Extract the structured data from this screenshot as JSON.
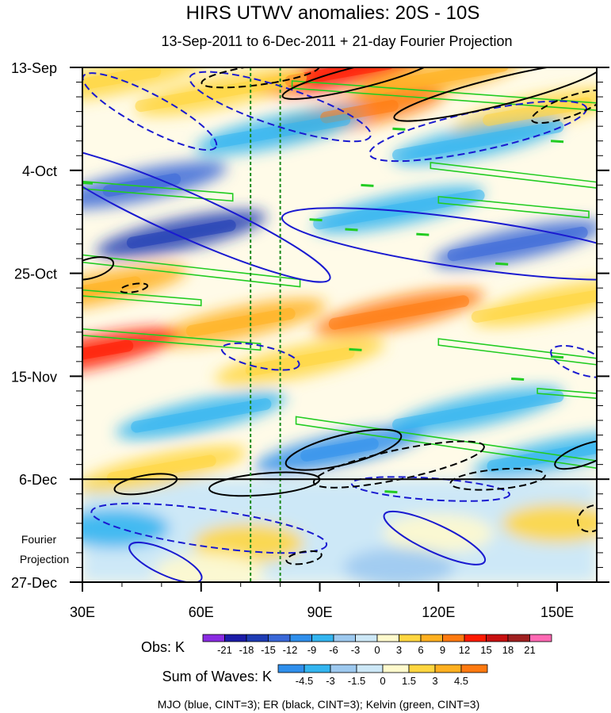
{
  "chart_data": {
    "type": "heatmap",
    "title": "HIRS UTWV anomalies: 20S - 10S",
    "subtitle": "13-Sep-2011 to 6-Dec-2011 + 21-day Fourier Projection",
    "xlim": [
      30,
      160
    ],
    "ylim_dates": [
      "13-Sep",
      "27-Dec"
    ],
    "y_ticks": [
      {
        "label": "13-Sep",
        "day": 0
      },
      {
        "label": "4-Oct",
        "day": 21
      },
      {
        "label": "25-Oct",
        "day": 42
      },
      {
        "label": "15-Nov",
        "day": 63
      },
      {
        "label": "6-Dec",
        "day": 84
      },
      {
        "label": "27-Dec",
        "day": 105
      }
    ],
    "x_ticks": [
      {
        "label": "30E",
        "lon": 30
      },
      {
        "label": "60E",
        "lon": 60
      },
      {
        "label": "90E",
        "lon": 90
      },
      {
        "label": "120E",
        "lon": 120
      },
      {
        "label": "150E",
        "lon": 150
      }
    ],
    "projection_start_day": 84,
    "projection_label": [
      "Fourier",
      "Projection"
    ],
    "reference_lines_lon": [
      72.5,
      80
    ],
    "obs_colorbar": {
      "label": "Obs: K",
      "ticks": [
        "-21",
        "-18",
        "-15",
        "-12",
        "-9",
        "-6",
        "-3",
        "0",
        "3",
        "6",
        "9",
        "12",
        "15",
        "18",
        "21"
      ],
      "colors": [
        "#8a2be2",
        "#1c1ca8",
        "#1e3cb4",
        "#3a68d8",
        "#2f8fec",
        "#33b5f0",
        "#9dc9ef",
        "#cde8f7",
        "#fffacd",
        "#ffd640",
        "#ffb020",
        "#ff7a10",
        "#ff1a00",
        "#c81010",
        "#a02020",
        "#ff69b4"
      ]
    },
    "waves_colorbar": {
      "label": "Sum of Waves: K",
      "ticks": [
        "-4.5",
        "-3",
        "-1.5",
        "0",
        "1.5",
        "3",
        "4.5"
      ],
      "colors": [
        "#2f8fec",
        "#33b5f0",
        "#9dc9ef",
        "#cde8f7",
        "#fffacd",
        "#ffd640",
        "#ffb020",
        "#ff7a10"
      ]
    },
    "footnote": "MJO (blue, CINT=3); ER (black, CINT=3); Kelvin (green, CINT=3)",
    "wave_colors": {
      "mjo": "#1a1ad0",
      "er": "#000000",
      "kelvin": "#22cc22"
    },
    "obs_field": [
      {
        "lon": 40,
        "day": 2,
        "value": 6
      },
      {
        "lon": 95,
        "day": 1,
        "value": 15
      },
      {
        "lon": 120,
        "day": 2,
        "value": 9
      },
      {
        "lon": 65,
        "day": 5,
        "value": 6
      },
      {
        "lon": 100,
        "day": 9,
        "value": 12
      },
      {
        "lon": 145,
        "day": 9,
        "value": 6
      },
      {
        "lon": 80,
        "day": 13,
        "value": -6
      },
      {
        "lon": 130,
        "day": 15,
        "value": -6
      },
      {
        "lon": 45,
        "day": 24,
        "value": -12
      },
      {
        "lon": 55,
        "day": 34,
        "value": -15
      },
      {
        "lon": 140,
        "day": 36,
        "value": -12
      },
      {
        "lon": 110,
        "day": 29,
        "value": -6
      },
      {
        "lon": 35,
        "day": 45,
        "value": 9
      },
      {
        "lon": 70,
        "day": 52,
        "value": 9
      },
      {
        "lon": 110,
        "day": 50,
        "value": 12
      },
      {
        "lon": 150,
        "day": 48,
        "value": 6
      },
      {
        "lon": 33,
        "day": 58,
        "value": 15
      },
      {
        "lon": 85,
        "day": 60,
        "value": 6
      },
      {
        "lon": 60,
        "day": 71,
        "value": -6
      },
      {
        "lon": 130,
        "day": 70,
        "value": -6
      },
      {
        "lon": 95,
        "day": 78,
        "value": -9
      },
      {
        "lon": 50,
        "day": 82,
        "value": 6
      },
      {
        "lon": 150,
        "day": 79,
        "value": -6
      }
    ],
    "wave_field": [
      {
        "lon": 38,
        "day": 94,
        "value": -3
      },
      {
        "lon": 72,
        "day": 97,
        "value": 3
      },
      {
        "lon": 62,
        "day": 103,
        "value": 1.5
      },
      {
        "lon": 120,
        "day": 95,
        "value": 1.5
      },
      {
        "lon": 150,
        "day": 93,
        "value": 3
      },
      {
        "lon": 110,
        "day": 102,
        "value": -1.5
      }
    ],
    "mjo_contours": [
      {
        "lon": 47,
        "day": 9,
        "rx": 19,
        "ry": 3.5,
        "angle": 28,
        "dashed": true
      },
      {
        "lon": 80,
        "day": 8,
        "rx": 24,
        "ry": 4,
        "angle": 18,
        "dashed": true
      },
      {
        "lon": 130,
        "day": 13,
        "rx": 28,
        "ry": 4,
        "angle": -12,
        "dashed": true
      },
      {
        "lon": 56,
        "day": 30,
        "rx": 40,
        "ry": 4.5,
        "angle": 24,
        "dashed": false
      },
      {
        "lon": 128,
        "day": 36,
        "rx": 48,
        "ry": 5,
        "angle": 8,
        "dashed": false
      },
      {
        "lon": 75,
        "day": 59,
        "rx": 10,
        "ry": 2.2,
        "angle": 12,
        "dashed": true
      },
      {
        "lon": 156,
        "day": 60,
        "rx": 8,
        "ry": 2.5,
        "angle": 20,
        "dashed": true
      },
      {
        "lon": 62,
        "day": 94,
        "rx": 30,
        "ry": 3.8,
        "angle": 8,
        "dashed": true
      },
      {
        "lon": 118,
        "day": 86,
        "rx": 20,
        "ry": 2.2,
        "angle": 4,
        "dashed": true
      },
      {
        "lon": 51,
        "day": 101,
        "rx": 10,
        "ry": 2.5,
        "angle": 25,
        "dashed": false
      },
      {
        "lon": 119,
        "day": 96,
        "rx": 14,
        "ry": 2.8,
        "angle": 25,
        "dashed": false
      }
    ],
    "er_contours": [
      {
        "lon": 75,
        "day": 1.5,
        "rx": 15,
        "ry": 2,
        "angle": -8,
        "dashed": true
      },
      {
        "lon": 100,
        "day": 2,
        "rx": 20,
        "ry": 2.2,
        "angle": -14,
        "dashed": false
      },
      {
        "lon": 135,
        "day": 5,
        "rx": 27,
        "ry": 2.8,
        "angle": -14,
        "dashed": false
      },
      {
        "lon": 153,
        "day": 8,
        "rx": 10,
        "ry": 2,
        "angle": -20,
        "dashed": true
      },
      {
        "lon": 32,
        "day": 41,
        "rx": 6,
        "ry": 2,
        "angle": -15,
        "dashed": false
      },
      {
        "lon": 43,
        "day": 45,
        "rx": 3.5,
        "ry": 0.8,
        "angle": -10,
        "dashed": true
      },
      {
        "lon": 96,
        "day": 78,
        "rx": 15,
        "ry": 3,
        "angle": -14,
        "dashed": false
      },
      {
        "lon": 110,
        "day": 81,
        "rx": 22,
        "ry": 3,
        "angle": -12,
        "dashed": true
      },
      {
        "lon": 135,
        "day": 84,
        "rx": 12,
        "ry": 2,
        "angle": -5,
        "dashed": true
      },
      {
        "lon": 76,
        "day": 85,
        "rx": 14,
        "ry": 2.2,
        "angle": -5,
        "dashed": false
      },
      {
        "lon": 46,
        "day": 85,
        "rx": 8,
        "ry": 1.8,
        "angle": -10,
        "dashed": false
      },
      {
        "lon": 157,
        "day": 79,
        "rx": 8,
        "ry": 2,
        "angle": -20,
        "dashed": false
      },
      {
        "lon": 86,
        "day": 100,
        "rx": 4.5,
        "ry": 1.2,
        "angle": -10,
        "dashed": true
      },
      {
        "lon": 159,
        "day": 92,
        "rx": 4,
        "ry": 2.5,
        "angle": -30,
        "dashed": true
      }
    ],
    "kelvin_bands": [
      {
        "lon0": 83,
        "day0": 3.5,
        "lon1": 160,
        "day1": 8,
        "width": 1.5
      },
      {
        "lon0": 30,
        "day0": 24,
        "lon1": 68,
        "day1": 26.5,
        "width": 1.5
      },
      {
        "lon0": 118,
        "day0": 20,
        "lon1": 160,
        "day1": 24,
        "width": 1.2
      },
      {
        "lon0": 120,
        "day0": 27,
        "lon1": 158,
        "day1": 30,
        "width": 1.3
      },
      {
        "lon0": 30,
        "day0": 39,
        "lon1": 85,
        "day1": 44,
        "width": 1.5
      },
      {
        "lon0": 30,
        "day0": 46,
        "lon1": 60,
        "day1": 48,
        "width": 1.2
      },
      {
        "lon0": 30,
        "day0": 54,
        "lon1": 75,
        "day1": 57,
        "width": 1.3
      },
      {
        "lon0": 120,
        "day0": 56,
        "lon1": 160,
        "day1": 60,
        "width": 1.3
      },
      {
        "lon0": 84,
        "day0": 72,
        "lon1": 160,
        "day1": 81,
        "width": 1.5
      },
      {
        "lon0": 145,
        "day0": 66,
        "lon1": 160,
        "day1": 67,
        "width": 1
      }
    ],
    "kelvin_dashes": [
      {
        "lon": 31,
        "day": 23.5
      },
      {
        "lon": 89,
        "day": 31
      },
      {
        "lon": 98,
        "day": 33
      },
      {
        "lon": 116,
        "day": 34
      },
      {
        "lon": 136,
        "day": 40
      },
      {
        "lon": 99,
        "day": 57.5
      },
      {
        "lon": 150,
        "day": 59
      },
      {
        "lon": 150,
        "day": 15
      },
      {
        "lon": 110,
        "day": 12.5
      },
      {
        "lon": 102,
        "day": 24
      },
      {
        "lon": 108,
        "day": 86.5
      },
      {
        "lon": 140,
        "day": 63.5
      }
    ]
  }
}
